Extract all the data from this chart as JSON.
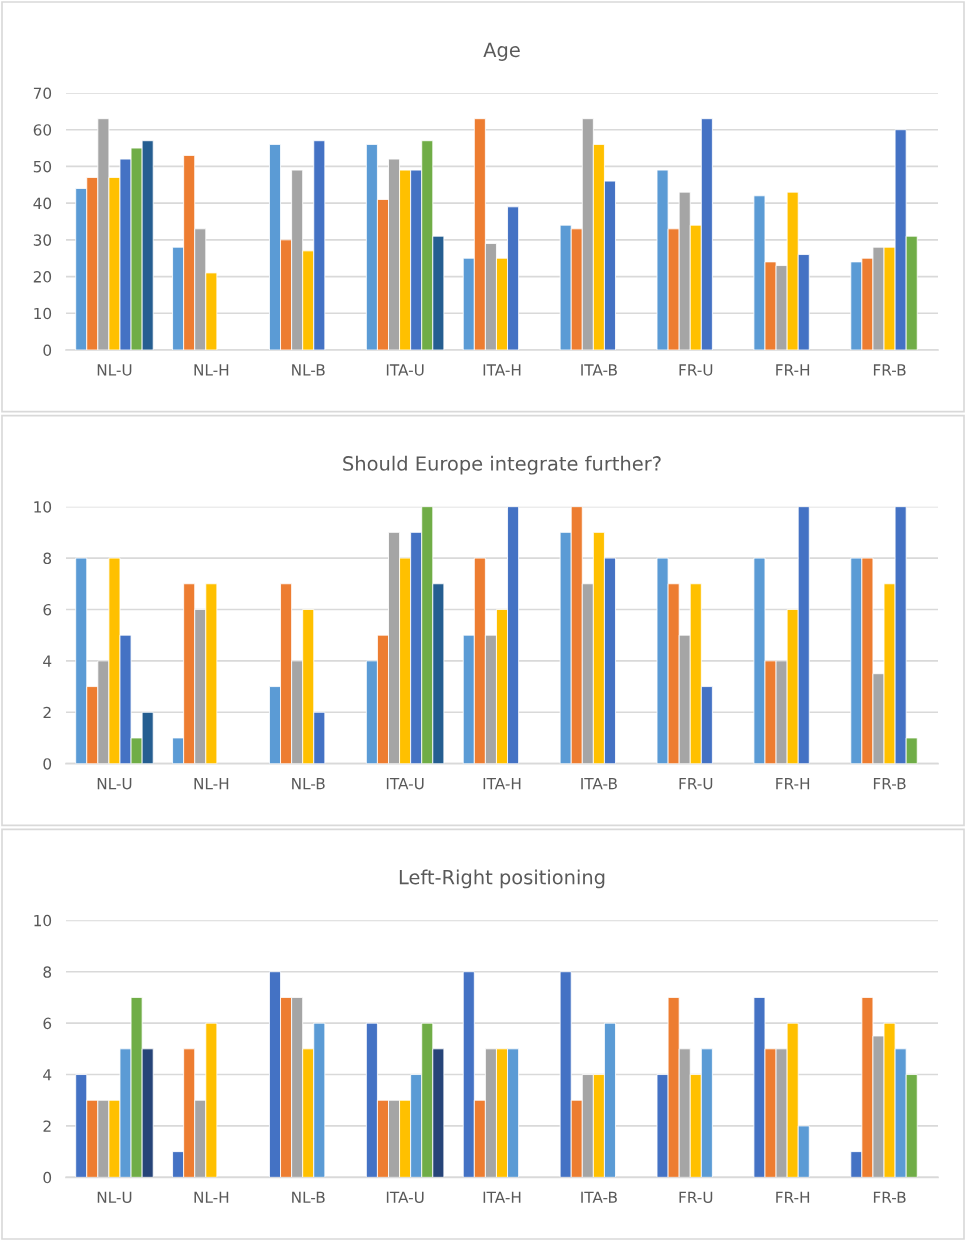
{
  "chart_data": [
    {
      "type": "bar",
      "title": "Age",
      "categories": [
        "NL-U",
        "NL-H",
        "NL-B",
        "ITA-U",
        "ITA-H",
        "ITA-B",
        "FR-U",
        "FR-H",
        "FR-B"
      ],
      "ylim": [
        0,
        70
      ],
      "yticks": [
        0,
        10,
        20,
        30,
        40,
        50,
        60,
        70
      ],
      "grid": "y",
      "legend": false,
      "series": [
        {
          "color": "#5b9bd5",
          "values": [
            44,
            28,
            56,
            56,
            25,
            34,
            49,
            42,
            24
          ]
        },
        {
          "color": "#ed7d31",
          "values": [
            47,
            53,
            30,
            41,
            63,
            33,
            33,
            24,
            25
          ]
        },
        {
          "color": "#a5a5a5",
          "values": [
            63,
            33,
            49,
            52,
            29,
            63,
            43,
            23,
            28
          ]
        },
        {
          "color": "#ffc000",
          "values": [
            47,
            21,
            27,
            49,
            25,
            56,
            34,
            43,
            28
          ]
        },
        {
          "color": "#4472c4",
          "values": [
            52,
            null,
            57,
            49,
            39,
            46,
            63,
            26,
            60
          ]
        },
        {
          "color": "#70ad47",
          "values": [
            55,
            null,
            null,
            57,
            null,
            null,
            null,
            null,
            31
          ]
        },
        {
          "color": "#255e91",
          "values": [
            57,
            null,
            null,
            31,
            null,
            null,
            null,
            null,
            null
          ]
        }
      ]
    },
    {
      "type": "bar",
      "title": "Should Europe integrate further?",
      "categories": [
        "NL-U",
        "NL-H",
        "NL-B",
        "ITA-U",
        "ITA-H",
        "ITA-B",
        "FR-U",
        "FR-H",
        "FR-B"
      ],
      "ylim": [
        0,
        10
      ],
      "yticks": [
        0,
        2,
        4,
        6,
        8,
        10
      ],
      "grid": "y",
      "legend": false,
      "series": [
        {
          "color": "#5b9bd5",
          "values": [
            8,
            1,
            3,
            4,
            5,
            9,
            8,
            8,
            8
          ]
        },
        {
          "color": "#ed7d31",
          "values": [
            3,
            7,
            7,
            5,
            8,
            10,
            7,
            4,
            8
          ]
        },
        {
          "color": "#a5a5a5",
          "values": [
            4,
            6,
            4,
            9,
            5,
            7,
            5,
            4,
            3.5
          ]
        },
        {
          "color": "#ffc000",
          "values": [
            8,
            7,
            6,
            8,
            6,
            9,
            7,
            6,
            7
          ]
        },
        {
          "color": "#4472c4",
          "values": [
            5,
            null,
            2,
            9,
            10,
            8,
            3,
            10,
            10
          ]
        },
        {
          "color": "#70ad47",
          "values": [
            1,
            null,
            null,
            10,
            null,
            null,
            null,
            null,
            1
          ]
        },
        {
          "color": "#255e91",
          "values": [
            2,
            null,
            null,
            7,
            null,
            null,
            null,
            null,
            null
          ]
        }
      ]
    },
    {
      "type": "bar",
      "title": "Left-Right positioning",
      "categories": [
        "NL-U",
        "NL-H",
        "NL-B",
        "ITA-U",
        "ITA-H",
        "ITA-B",
        "FR-U",
        "FR-H",
        "FR-B"
      ],
      "ylim": [
        0,
        10
      ],
      "yticks": [
        0,
        2,
        4,
        6,
        8,
        10
      ],
      "grid": "y",
      "legend": false,
      "series": [
        {
          "color": "#4472c4",
          "values": [
            4,
            1,
            8,
            6,
            8,
            8,
            4,
            7,
            1
          ]
        },
        {
          "color": "#ed7d31",
          "values": [
            3,
            5,
            7,
            3,
            3,
            3,
            7,
            5,
            7
          ]
        },
        {
          "color": "#a5a5a5",
          "values": [
            3,
            3,
            7,
            3,
            5,
            4,
            5,
            5,
            5.5
          ]
        },
        {
          "color": "#ffc000",
          "values": [
            3,
            6,
            5,
            3,
            5,
            4,
            4,
            6,
            6
          ]
        },
        {
          "color": "#5b9bd5",
          "values": [
            5,
            null,
            6,
            4,
            5,
            6,
            5,
            2,
            5
          ]
        },
        {
          "color": "#70ad47",
          "values": [
            7,
            null,
            null,
            6,
            null,
            null,
            null,
            null,
            4
          ]
        },
        {
          "color": "#264478",
          "values": [
            5,
            null,
            null,
            5,
            null,
            null,
            null,
            null,
            null
          ]
        }
      ]
    }
  ]
}
